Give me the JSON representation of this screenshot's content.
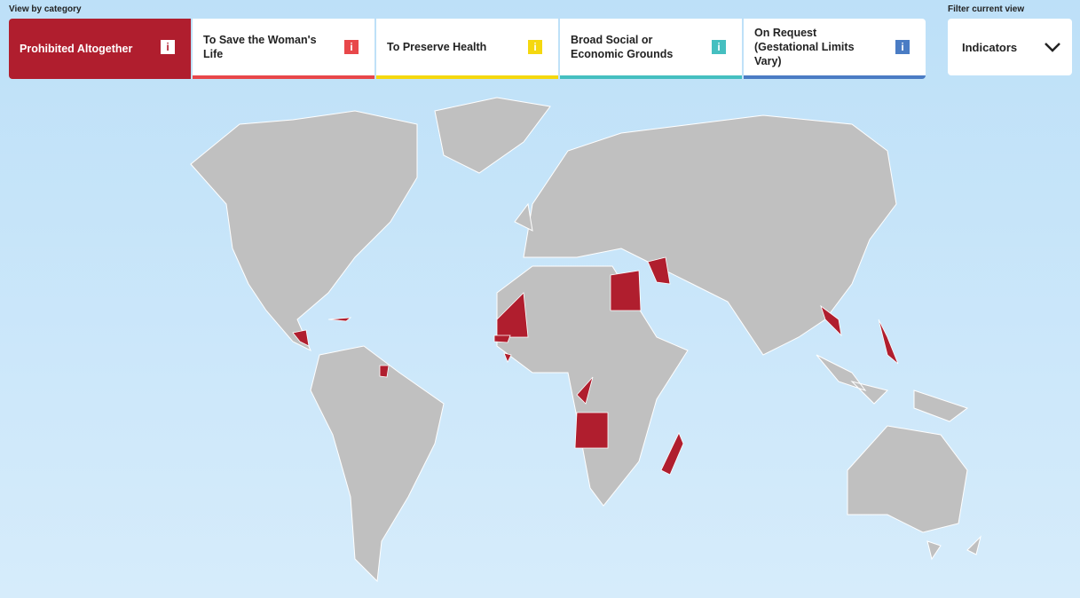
{
  "header": {
    "view_label": "View by category",
    "filter_label": "Filter current view"
  },
  "tabs": [
    {
      "label": "Prohibited Altogether",
      "icon": "i"
    },
    {
      "label": "To Save the Woman's Life",
      "icon": "i"
    },
    {
      "label": "To Preserve Health",
      "icon": "i"
    },
    {
      "label": "Broad Social or Economic Grounds",
      "icon": "i"
    },
    {
      "label": "On Request (Gestational Limits Vary)",
      "icon": "i"
    }
  ],
  "dropdown": {
    "label": "Indicators"
  }
}
